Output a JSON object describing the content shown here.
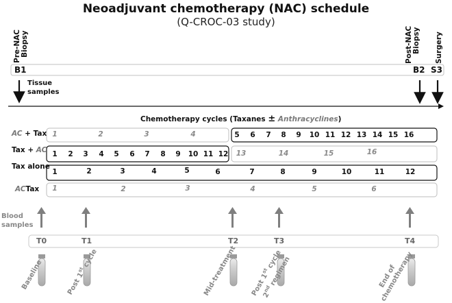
{
  "header": {
    "title": "Neoadjuvant chemotherapy (NAC) schedule",
    "subtitle": "(Q-CROC-03 study)"
  },
  "biopsy": {
    "pre_nac_line1": "Pre-NAC",
    "pre_nac_line2": "Biopsy",
    "post_nac_line1": "Post-NAC",
    "post_nac_line2": "Biopsy",
    "surgery": "Surgery",
    "b1": "B1",
    "b2": "B2",
    "s3": "S3",
    "tissue_line1": "Tissue",
    "tissue_line2": "samples"
  },
  "chemo": {
    "caption_prefix": "Chemotherapy cycles (",
    "caption_taxanes": "Taxanes ",
    "caption_pm": "±",
    "caption_anthra": "Anthracyclines",
    "caption_suffix": ")",
    "rows": [
      {
        "label_a": "AC",
        "label_b": " + Tax",
        "first_cycles": [
          "1",
          "2",
          "3",
          "4"
        ],
        "second_cycles": [
          "5",
          "6",
          "7",
          "8",
          "9",
          "10",
          "11",
          "12",
          "13",
          "14",
          "15",
          "16"
        ]
      },
      {
        "label_a": "Tax + ",
        "label_b": "AC",
        "first_cycles": [
          "1",
          "2",
          "3",
          "4",
          "5",
          "6",
          "7",
          "8",
          "9",
          "10",
          "11",
          "12"
        ],
        "second_cycles": [
          "13",
          "14",
          "15",
          "16"
        ]
      },
      {
        "label_a": "Tax alone",
        "cycles": [
          "1",
          "2",
          "3",
          "4",
          "5",
          "6",
          "7",
          "8",
          "9",
          "10",
          "11",
          "12"
        ]
      },
      {
        "label_a": "AC",
        "label_b": "Tax",
        "cycles": [
          "1",
          "2",
          "3",
          "4",
          "5",
          "6"
        ]
      }
    ]
  },
  "blood": {
    "label_line1": "Blood",
    "label_line2": "samples",
    "timepoints": [
      "T0",
      "T1",
      "T2",
      "T3",
      "T4"
    ],
    "descriptions": {
      "baseline": "Baseline",
      "post_first_a": "Post 1",
      "post_first_sup": "st",
      "post_first_b": " cycle",
      "mid": "Mid-treatment",
      "post_second_a": "Post 1",
      "post_second_sup": "st",
      "post_second_b": " cycle",
      "post_second_c": "2",
      "post_second_sup2": "nd",
      "post_second_d": " regimen",
      "end_line1": "End of",
      "end_line2": "chemotherapy"
    }
  },
  "colors": {
    "grey_text": "#8a8a8a",
    "grey_arrow": "#7f7f7f",
    "tube_top": "#c8c8c8",
    "tube_bottom": "#a8a8a8"
  }
}
